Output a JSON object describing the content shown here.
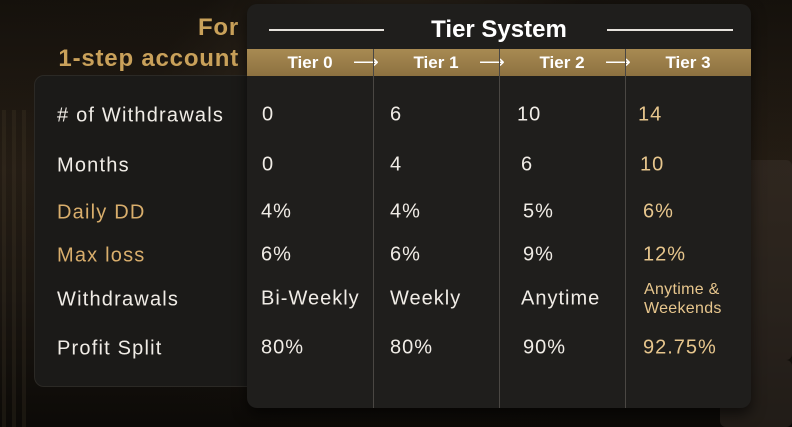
{
  "heading": {
    "line1": "For",
    "line2": "1-step account"
  },
  "table": {
    "title": "Tier System",
    "tiers": [
      "Tier 0",
      "Tier 1",
      "Tier 2",
      "Tier 3"
    ],
    "arrow": "⟶",
    "rows": [
      {
        "label": "# of Withdrawals",
        "values": [
          "0",
          "6",
          "10",
          "14"
        ]
      },
      {
        "label": "Months",
        "values": [
          "0",
          "4",
          "6",
          "10"
        ]
      },
      {
        "label": "Daily DD",
        "values": [
          "4%",
          "4%",
          "5%",
          "6%"
        ]
      },
      {
        "label": "Max loss",
        "values": [
          "6%",
          "6%",
          "9%",
          "12%"
        ]
      },
      {
        "label": "Withdrawals",
        "values": [
          "Bi-Weekly",
          "Weekly",
          "Anytime",
          "Anytime & Weekends"
        ]
      },
      {
        "label": "Profit Split",
        "values": [
          "80%",
          "80%",
          "90%",
          "92.75%"
        ]
      }
    ]
  },
  "colors": {
    "accent_gold": "#c9a15a",
    "label_gold": "#d9ae6c",
    "tier3_value": "#e7c68d",
    "tier_bar": "#a88a52",
    "card_bg": "#1f1e1c",
    "text": "#f0ece6"
  }
}
